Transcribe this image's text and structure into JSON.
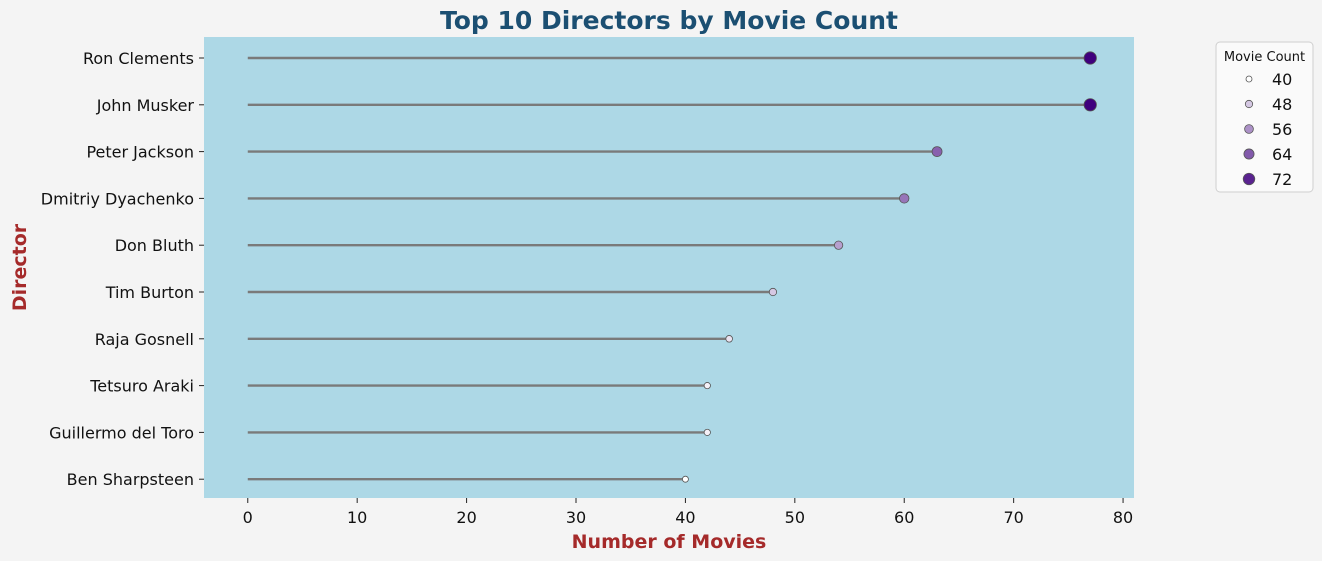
{
  "chart_data": {
    "type": "scatter",
    "subtype": "lollipop",
    "title": "Top 10 Directors by Movie Count",
    "xlabel": "Number of Movies",
    "ylabel": "Director",
    "xlim": [
      -4,
      81
    ],
    "xticks": [
      0,
      10,
      20,
      30,
      40,
      50,
      60,
      70,
      80
    ],
    "grid": false,
    "categories": [
      "Ron Clements",
      "John Musker",
      "Peter Jackson",
      "Dmitriy Dyachenko",
      "Don Bluth",
      "Tim Burton",
      "Raja Gosnell",
      "Tetsuro Araki",
      "Guillermo del Toro",
      "Ben Sharpsteen"
    ],
    "values": [
      77,
      77,
      63,
      60,
      54,
      48,
      44,
      42,
      42,
      40
    ],
    "legend": {
      "title": "Movie Count",
      "placement": "outside-top-right",
      "entries": [
        {
          "label": "40",
          "value": 40
        },
        {
          "label": "48",
          "value": 48
        },
        {
          "label": "56",
          "value": 56
        },
        {
          "label": "64",
          "value": 64
        },
        {
          "label": "72",
          "value": 72
        }
      ]
    },
    "colors": {
      "page_background": "#f4f4f4",
      "plot_background": "#add8e6",
      "stem": "#7a7a7a",
      "title": "#1b4f72",
      "axis_label": "#a52a2a",
      "marker_edge": "#555555",
      "palette_low": "#ffffff",
      "palette_high": "#3f007d"
    }
  }
}
